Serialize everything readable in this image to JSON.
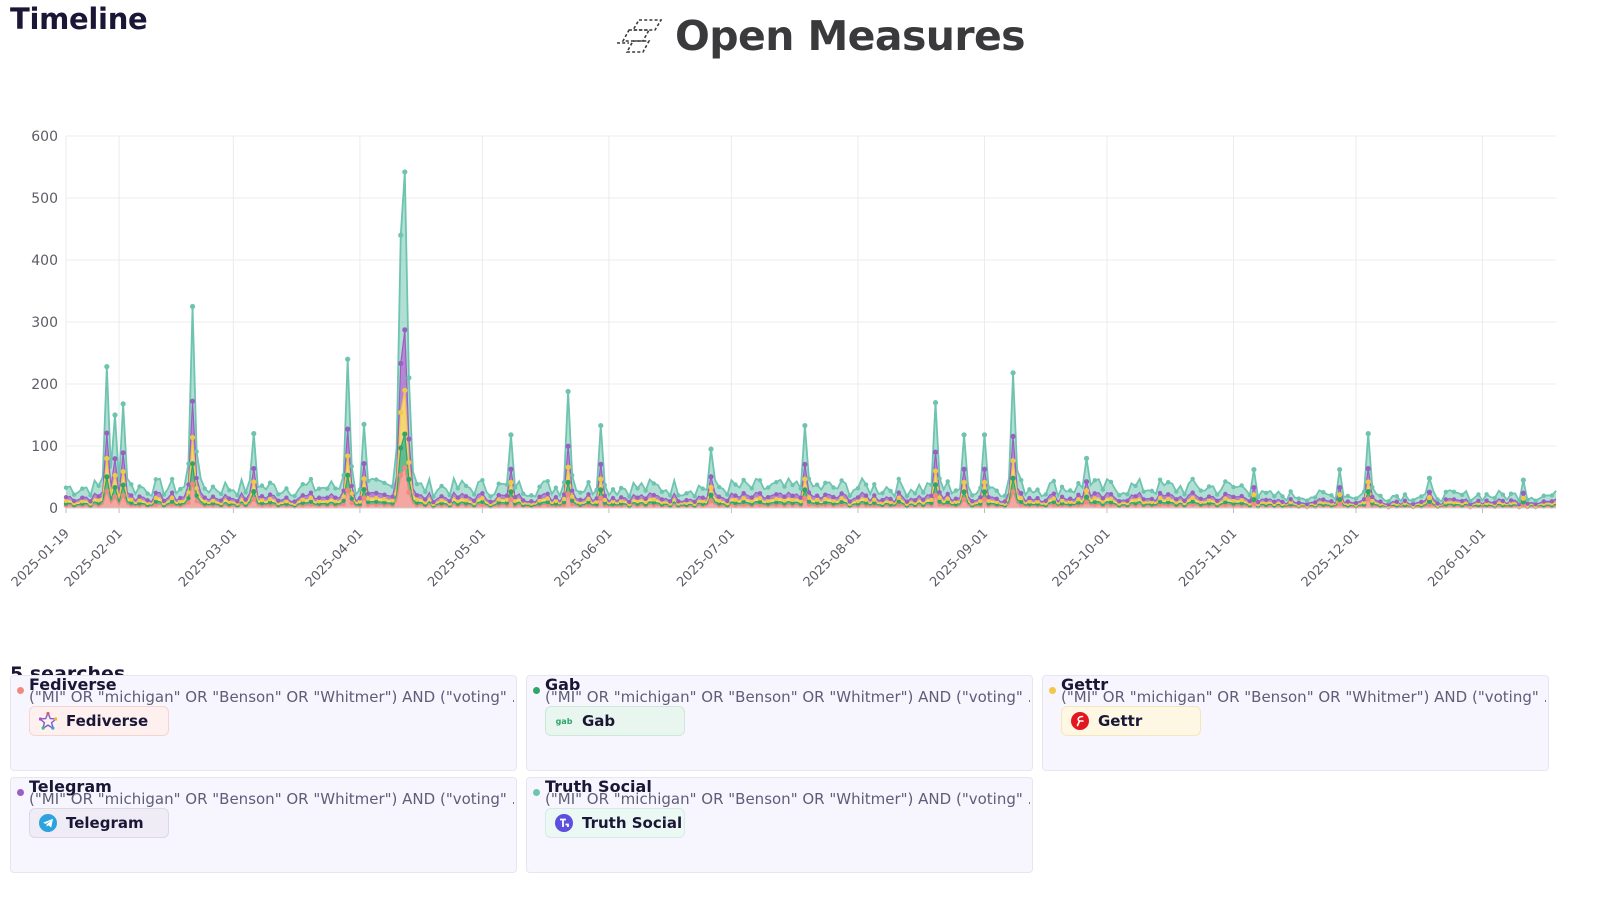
{
  "page": {
    "title": "Timeline"
  },
  "brand": {
    "name": "Open Measures"
  },
  "colors": {
    "fediverse": "#f08a80",
    "gab": "#2fa56a",
    "gettr": "#f1c84a",
    "telegram": "#9a5fc2",
    "truth_social": "#6fc4b0"
  },
  "chart_data": {
    "type": "area",
    "stacked": true,
    "title": "",
    "xlabel": "",
    "ylabel": "",
    "ylim": [
      0,
      600
    ],
    "y_ticks": [
      0,
      100,
      200,
      300,
      400,
      500,
      600
    ],
    "x_range": [
      "2025-01-19",
      "2026-01-19"
    ],
    "x_tick_labels": [
      "2025-01-19",
      "2025-02-01",
      "2025-03-01",
      "2025-04-01",
      "2025-05-01",
      "2025-06-01",
      "2025-07-01",
      "2025-08-01",
      "2025-09-01",
      "2025-10-01",
      "2025-11-01",
      "2025-12-01",
      "2026-01-01"
    ],
    "grid": true,
    "legend": "none",
    "series_order": [
      "Fediverse",
      "Gab",
      "Gettr",
      "Telegram",
      "Truth Social"
    ],
    "total_peaks": [
      {
        "date": "2025-01-29",
        "total": 228
      },
      {
        "date": "2025-01-31",
        "total": 150
      },
      {
        "date": "2025-02-02",
        "total": 168
      },
      {
        "date": "2025-02-19",
        "total": 325
      },
      {
        "date": "2025-03-06",
        "total": 120
      },
      {
        "date": "2025-03-29",
        "total": 240
      },
      {
        "date": "2025-04-02",
        "total": 135
      },
      {
        "date": "2025-04-11",
        "total": 440
      },
      {
        "date": "2025-04-12",
        "total": 542
      },
      {
        "date": "2025-04-13",
        "total": 210
      },
      {
        "date": "2025-05-08",
        "total": 118
      },
      {
        "date": "2025-05-22",
        "total": 188
      },
      {
        "date": "2025-05-30",
        "total": 133
      },
      {
        "date": "2025-06-26",
        "total": 95
      },
      {
        "date": "2025-07-19",
        "total": 133
      },
      {
        "date": "2025-08-20",
        "total": 170
      },
      {
        "date": "2025-08-27",
        "total": 118
      },
      {
        "date": "2025-09-01",
        "total": 118
      },
      {
        "date": "2025-09-08",
        "total": 218
      },
      {
        "date": "2025-09-26",
        "total": 80
      },
      {
        "date": "2025-11-06",
        "total": 62
      },
      {
        "date": "2025-11-27",
        "total": 62
      },
      {
        "date": "2025-12-04",
        "total": 120
      },
      {
        "date": "2025-12-19",
        "total": 48
      },
      {
        "date": "2026-01-11",
        "total": 45
      }
    ]
  },
  "searches": {
    "heading": "5 searches",
    "items": [
      {
        "name": "Fediverse",
        "query": "(\"MI\" OR \"michigan\" OR \"Benson\" OR \"Whitmer\") AND (\"voting\" ...",
        "chip_label": "Fediverse",
        "icon": "fediverse-star-icon",
        "color": "#f08a80"
      },
      {
        "name": "Gab",
        "query": "(\"MI\" OR \"michigan\" OR \"Benson\" OR \"Whitmer\") AND (\"voting\" ...",
        "chip_label": "Gab",
        "icon_text": "gab",
        "icon": "gab-icon",
        "color": "#2fa56a"
      },
      {
        "name": "Gettr",
        "query": "(\"MI\" OR \"michigan\" OR \"Benson\" OR \"Whitmer\") AND (\"voting\" ...",
        "chip_label": "Gettr",
        "icon": "gettr-icon",
        "color": "#f1c84a"
      },
      {
        "name": "Telegram",
        "query": "(\"MI\" OR \"michigan\" OR \"Benson\" OR \"Whitmer\") AND (\"voting\" ...",
        "chip_label": "Telegram",
        "icon": "telegram-icon",
        "color": "#9a5fc2"
      },
      {
        "name": "Truth Social",
        "query": "(\"MI\" OR \"michigan\" OR \"Benson\" OR \"Whitmer\") AND (\"voting\" ...",
        "chip_label": "Truth Social",
        "icon": "truth-social-icon",
        "color": "#6fc4b0"
      }
    ]
  }
}
